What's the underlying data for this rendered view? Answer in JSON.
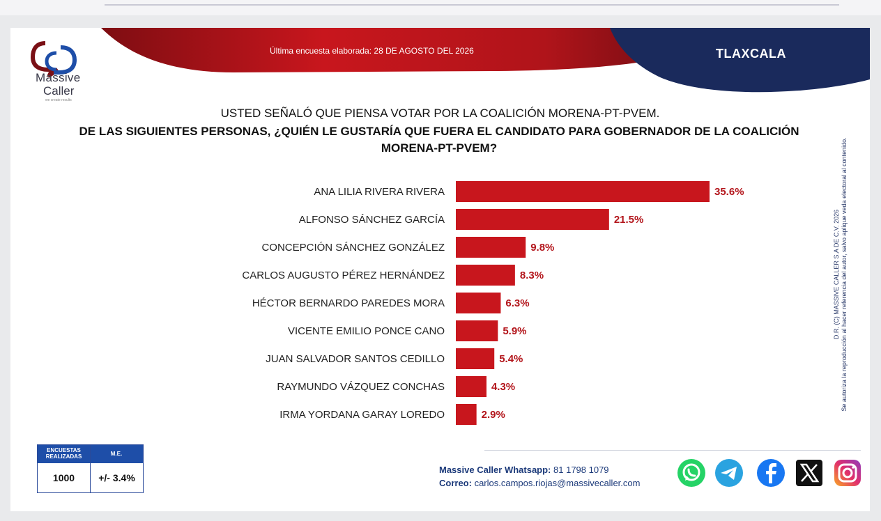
{
  "brand": {
    "name_line1": "Massive",
    "name_line2": "Caller",
    "tagline": "we create results"
  },
  "header": {
    "survey_date": "Última encuesta elaborada: 28 DE AGOSTO DEL 2026",
    "state": "TLAXCALA"
  },
  "question": {
    "line1": "USTED SEÑALÓ QUE PIENSA VOTAR POR LA COALICIÓN MORENA-PT-PVEM.",
    "line2": "DE LAS SIGUIENTES PERSONAS, ¿QUIÉN LE GUSTARÍA QUE FUERA EL CANDIDATO PARA GOBERNADOR DE LA COALICIÓN MORENA-PT-PVEM?"
  },
  "chart_data": {
    "type": "bar",
    "orientation": "horizontal",
    "title": "",
    "xlabel": "",
    "ylabel": "",
    "categories": [
      "ANA LILIA RIVERA RIVERA",
      "ALFONSO SÁNCHEZ GARCÍA",
      "CONCEPCIÓN SÁNCHEZ GONZÁLEZ",
      "CARLOS AUGUSTO PÉREZ HERNÁNDEZ",
      "HÉCTOR BERNARDO PAREDES MORA",
      "VICENTE EMILIO PONCE CANO",
      "JUAN SALVADOR SANTOS CEDILLO",
      "RAYMUNDO VÁZQUEZ CONCHAS",
      "IRMA YORDANA GARAY LOREDO"
    ],
    "values": [
      35.6,
      21.5,
      9.8,
      8.3,
      6.3,
      5.9,
      5.4,
      4.3,
      2.9
    ],
    "value_labels": [
      "35.6%",
      "21.5%",
      "9.8%",
      "8.3%",
      "6.3%",
      "5.9%",
      "5.4%",
      "4.3%",
      "2.9%"
    ],
    "xlim": [
      0,
      35.6
    ],
    "grid": false,
    "legend": "none",
    "bar_color": "#c8161d",
    "label_color": "#b3151b"
  },
  "copyright": {
    "line1": "D.R. (C) MASSIVE CALLER S.A DE C.V. 2026",
    "line2": "Se autoriza la reproducción al hacer referencia del autor, salvo aplique veda electoral al contenido."
  },
  "sample_table": {
    "header_sample": "ENCUESTAS REALIZADAS",
    "header_margin": "M.E.",
    "sample_value": "1000",
    "margin_value": "+/- 3.4%"
  },
  "contact": {
    "whatsapp_label": "Massive Caller Whatsapp:",
    "whatsapp_number": "81 1798 1079",
    "email_label": "Correo:",
    "email_value": "carlos.campos.riojas@massivecaller.com"
  },
  "social_icons": [
    "whatsapp-icon",
    "telegram-icon",
    "facebook-icon",
    "x-icon",
    "instagram-icon"
  ],
  "colors": {
    "red": "#c8161d",
    "navy": "#1a2a5c",
    "blue": "#1e4ea8"
  }
}
